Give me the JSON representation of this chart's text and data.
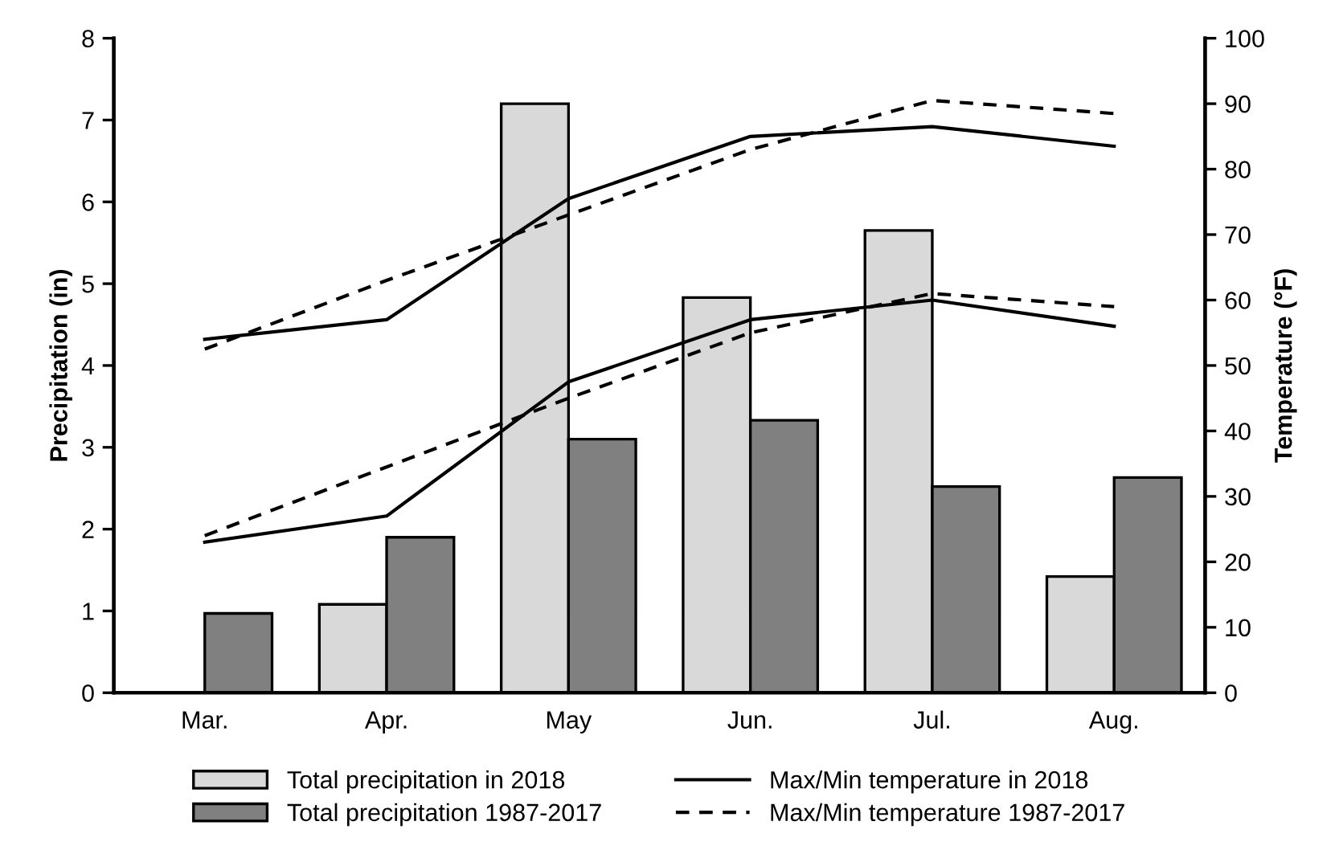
{
  "chart_data": {
    "type": "bar",
    "categories": [
      "Mar.",
      "Apr.",
      "May",
      "Jun.",
      "Jul.",
      "Aug."
    ],
    "ylabel": "Precipitation (in)",
    "y2label": "Temperature (°F)",
    "ylim": [
      0,
      8
    ],
    "yticks": [
      0,
      1,
      2,
      3,
      4,
      5,
      6,
      7,
      8
    ],
    "y2lim": [
      0,
      100
    ],
    "y2ticks": [
      0,
      10,
      20,
      30,
      40,
      50,
      60,
      70,
      80,
      90,
      100
    ],
    "legend": "bottom",
    "grid": false,
    "series": [
      {
        "name": "Total precipitation in 2018",
        "color": "#d9d9d9",
        "values": [
          null,
          1.08,
          7.2,
          4.83,
          5.65,
          1.42
        ]
      },
      {
        "name": "Total precipitation 1987-2017",
        "color": "#808080",
        "values": [
          0.97,
          1.9,
          3.1,
          3.33,
          2.52,
          2.63
        ]
      },
      {
        "name": "Max/Min temperature in 2018",
        "type": "line",
        "axis": "y2",
        "color": "#000000",
        "line_style": "solid",
        "values": [
          54,
          57,
          75.5,
          85,
          86.5,
          83.5
        ]
      },
      {
        "name": "Max/Min temperature 1987-2017",
        "type": "line",
        "axis": "y2",
        "color": "#000000",
        "line_style": "dashed",
        "values": [
          52.5,
          63,
          73,
          83,
          90.5,
          88.5
        ]
      },
      {
        "type": "line",
        "axis": "y2",
        "color": "#000000",
        "line_style": "solid",
        "values": [
          23,
          27,
          47.5,
          57,
          60,
          56
        ]
      },
      {
        "type": "line",
        "axis": "y2",
        "color": "#000000",
        "line_style": "dashed",
        "values": [
          24,
          34.5,
          45,
          55,
          61,
          59
        ]
      }
    ]
  }
}
